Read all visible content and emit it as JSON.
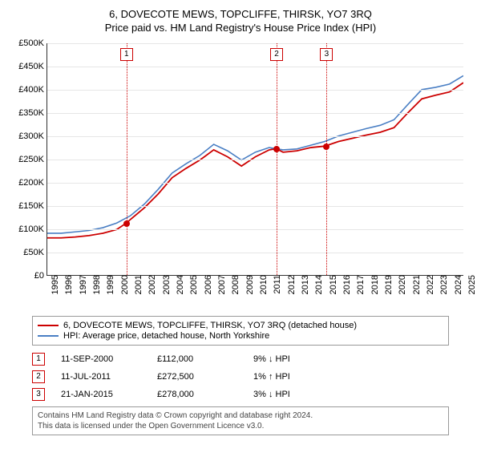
{
  "title_line1": "6, DOVECOTE MEWS, TOPCLIFFE, THIRSK, YO7 3RQ",
  "title_line2": "Price paid vs. HM Land Registry's House Price Index (HPI)",
  "chart": {
    "type": "line",
    "background_color": "#ffffff",
    "grid_color": "#e6e6e6",
    "axis_color": "#333333",
    "font_size_labels": 11,
    "x": {
      "min": 1995,
      "max": 2025,
      "step": 1,
      "labels": [
        "1995",
        "1996",
        "1997",
        "1998",
        "1999",
        "2000",
        "2001",
        "2002",
        "2003",
        "2004",
        "2005",
        "2006",
        "2007",
        "2008",
        "2009",
        "2010",
        "2011",
        "2012",
        "2013",
        "2014",
        "2015",
        "2016",
        "2017",
        "2018",
        "2019",
        "2020",
        "2021",
        "2022",
        "2023",
        "2024",
        "2025"
      ]
    },
    "y": {
      "min": 0,
      "max": 500000,
      "step": 50000,
      "labels": [
        "£0",
        "£50K",
        "£100K",
        "£150K",
        "£200K",
        "£250K",
        "£300K",
        "£350K",
        "£400K",
        "£450K",
        "£500K"
      ]
    },
    "series": [
      {
        "id": "property",
        "label": "6, DOVECOTE MEWS, TOPCLIFFE, THIRSK, YO7 3RQ (detached house)",
        "color": "#cc0000",
        "width": 1.8,
        "points": [
          [
            1995,
            80000
          ],
          [
            1996,
            80000
          ],
          [
            1997,
            82000
          ],
          [
            1998,
            85000
          ],
          [
            1999,
            90000
          ],
          [
            2000,
            98000
          ],
          [
            2000.7,
            112000
          ],
          [
            2001,
            120000
          ],
          [
            2002,
            145000
          ],
          [
            2003,
            175000
          ],
          [
            2004,
            210000
          ],
          [
            2005,
            230000
          ],
          [
            2006,
            248000
          ],
          [
            2007,
            270000
          ],
          [
            2008,
            255000
          ],
          [
            2009,
            235000
          ],
          [
            2010,
            255000
          ],
          [
            2011,
            270000
          ],
          [
            2011.5,
            272500
          ],
          [
            2012,
            265000
          ],
          [
            2013,
            268000
          ],
          [
            2014,
            275000
          ],
          [
            2015,
            278000
          ],
          [
            2016,
            288000
          ],
          [
            2017,
            295000
          ],
          [
            2018,
            302000
          ],
          [
            2019,
            308000
          ],
          [
            2020,
            318000
          ],
          [
            2021,
            350000
          ],
          [
            2022,
            380000
          ],
          [
            2023,
            388000
          ],
          [
            2024,
            395000
          ],
          [
            2025,
            415000
          ]
        ]
      },
      {
        "id": "hpi",
        "label": "HPI: Average price, detached house, North Yorkshire",
        "color": "#4a7fc4",
        "width": 1.6,
        "points": [
          [
            1995,
            90000
          ],
          [
            1996,
            90000
          ],
          [
            1997,
            93000
          ],
          [
            1998,
            96000
          ],
          [
            1999,
            102000
          ],
          [
            2000,
            112000
          ],
          [
            2001,
            128000
          ],
          [
            2002,
            153000
          ],
          [
            2003,
            185000
          ],
          [
            2004,
            220000
          ],
          [
            2005,
            240000
          ],
          [
            2006,
            258000
          ],
          [
            2007,
            282000
          ],
          [
            2008,
            268000
          ],
          [
            2009,
            248000
          ],
          [
            2010,
            265000
          ],
          [
            2011,
            275000
          ],
          [
            2012,
            270000
          ],
          [
            2013,
            272000
          ],
          [
            2014,
            280000
          ],
          [
            2015,
            288000
          ],
          [
            2016,
            300000
          ],
          [
            2017,
            308000
          ],
          [
            2018,
            316000
          ],
          [
            2019,
            323000
          ],
          [
            2020,
            335000
          ],
          [
            2021,
            368000
          ],
          [
            2022,
            400000
          ],
          [
            2023,
            405000
          ],
          [
            2024,
            412000
          ],
          [
            2025,
            430000
          ]
        ]
      }
    ],
    "vlines": [
      {
        "x": 2000.7,
        "color": "#cc0000",
        "badge": "1"
      },
      {
        "x": 2011.5,
        "color": "#cc0000",
        "badge": "2"
      },
      {
        "x": 2015.1,
        "color": "#cc0000",
        "badge": "3"
      }
    ],
    "markers": [
      {
        "x": 2000.7,
        "y": 112000,
        "color": "#cc0000"
      },
      {
        "x": 2011.5,
        "y": 272500,
        "color": "#cc0000"
      },
      {
        "x": 2015.1,
        "y": 278000,
        "color": "#cc0000"
      }
    ]
  },
  "legend": [
    {
      "color": "#cc0000",
      "label": "6, DOVECOTE MEWS, TOPCLIFFE, THIRSK, YO7 3RQ (detached house)"
    },
    {
      "color": "#4a7fc4",
      "label": "HPI: Average price, detached house, North Yorkshire"
    }
  ],
  "transactions": [
    {
      "n": "1",
      "date": "11-SEP-2000",
      "price": "£112,000",
      "hpi": "9% ↓ HPI",
      "color": "#cc0000"
    },
    {
      "n": "2",
      "date": "11-JUL-2011",
      "price": "£272,500",
      "hpi": "1% ↑ HPI",
      "color": "#cc0000"
    },
    {
      "n": "3",
      "date": "21-JAN-2015",
      "price": "£278,000",
      "hpi": "3% ↓ HPI",
      "color": "#cc0000"
    }
  ],
  "footer_line1": "Contains HM Land Registry data © Crown copyright and database right 2024.",
  "footer_line2": "This data is licensed under the Open Government Licence v3.0."
}
